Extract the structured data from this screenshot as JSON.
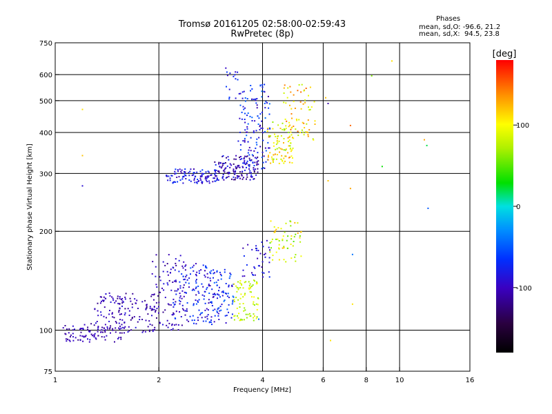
{
  "chart_data": {
    "type": "scatter",
    "title": "Tromsø 20161205 02:58:00-02:59:43",
    "subtitle": "RwPretec (8p)",
    "xlabel": "Frequency [MHz]",
    "ylabel": "Stationary phase Virtual Height [km]",
    "x_scale": "log2",
    "y_scale": "log",
    "xlim": [
      1,
      16
    ],
    "ylim": [
      75,
      750
    ],
    "x_ticks": [
      1,
      2,
      4,
      6,
      8,
      10,
      16
    ],
    "x_tick_labels": [
      "1",
      "2",
      "4",
      "6",
      "8",
      "10",
      "16"
    ],
    "x_grid": [
      2,
      4,
      6,
      8,
      10
    ],
    "y_ticks": [
      75,
      100,
      200,
      300,
      400,
      500,
      600,
      750
    ],
    "y_tick_labels": [
      "75",
      "100",
      "200",
      "300",
      "400",
      "500",
      "600",
      "750"
    ],
    "y_grid": [
      100,
      200,
      300,
      400,
      500,
      600
    ],
    "grid": true,
    "colorbar": {
      "label": "[deg]",
      "range": [
        -180,
        180
      ],
      "ticks": [
        100,
        0,
        -100
      ],
      "tick_labels": [
        "100",
        "0",
        "-100"
      ]
    },
    "stats": {
      "heading": "Phases",
      "line_o": "mean, sd,O: -96.6, 21.2",
      "line_x": "mean, sd,X:  94.5, 23.8"
    },
    "clusters": [
      {
        "f": [
          1.05,
          1.6
        ],
        "h": [
          92,
          105
        ],
        "phase": [
          -120,
          -90
        ],
        "n": 90
      },
      {
        "f": [
          1.3,
          2.0
        ],
        "h": [
          98,
          130
        ],
        "phase": [
          -125,
          -85
        ],
        "n": 150
      },
      {
        "f": [
          1.9,
          2.4
        ],
        "h": [
          100,
          170
        ],
        "phase": [
          -120,
          -80
        ],
        "n": 90
      },
      {
        "f": [
          2.2,
          3.0
        ],
        "h": [
          103,
          160
        ],
        "phase": [
          -110,
          -50
        ],
        "n": 150
      },
      {
        "f": [
          2.8,
          3.3
        ],
        "h": [
          105,
          155
        ],
        "phase": [
          -100,
          -40
        ],
        "n": 70
      },
      {
        "f": [
          3.3,
          3.9
        ],
        "h": [
          107,
          142
        ],
        "phase": [
          60,
          110
        ],
        "n": 80
      },
      {
        "f": [
          3.5,
          4.2
        ],
        "h": [
          145,
          190
        ],
        "phase": [
          -110,
          -70
        ],
        "n": 40
      },
      {
        "f": [
          4.2,
          5.2
        ],
        "h": [
          160,
          215
        ],
        "phase": [
          50,
          130
        ],
        "n": 60
      },
      {
        "f": [
          2.1,
          3.0
        ],
        "h": [
          280,
          310
        ],
        "phase": [
          -110,
          -60
        ],
        "n": 110
      },
      {
        "f": [
          2.9,
          3.9
        ],
        "h": [
          285,
          340
        ],
        "phase": [
          -130,
          -70
        ],
        "n": 140
      },
      {
        "f": [
          3.4,
          4.2
        ],
        "h": [
          310,
          560
        ],
        "phase": [
          -110,
          -40
        ],
        "n": 130
      },
      {
        "f": [
          4.1,
          4.9
        ],
        "h": [
          320,
          430
        ],
        "phase": [
          60,
          140
        ],
        "n": 90
      },
      {
        "f": [
          4.6,
          5.7
        ],
        "h": [
          360,
          560
        ],
        "phase": [
          70,
          150
        ],
        "n": 70
      },
      {
        "f": [
          3.1,
          3.4
        ],
        "h": [
          500,
          640
        ],
        "phase": [
          -100,
          -60
        ],
        "n": 15
      }
    ],
    "outliers": [
      {
        "f": 1.2,
        "h": 470,
        "phase": 110
      },
      {
        "f": 1.2,
        "h": 340,
        "phase": 120
      },
      {
        "f": 1.2,
        "h": 275,
        "phase": -90
      },
      {
        "f": 6.1,
        "h": 510,
        "phase": 120
      },
      {
        "f": 6.2,
        "h": 490,
        "phase": -110
      },
      {
        "f": 6.2,
        "h": 285,
        "phase": 120
      },
      {
        "f": 7.2,
        "h": 420,
        "phase": 150
      },
      {
        "f": 7.2,
        "h": 270,
        "phase": 130
      },
      {
        "f": 8.3,
        "h": 595,
        "phase": 60
      },
      {
        "f": 8.9,
        "h": 315,
        "phase": 30
      },
      {
        "f": 9.5,
        "h": 660,
        "phase": 110
      },
      {
        "f": 11.8,
        "h": 380,
        "phase": 130
      },
      {
        "f": 12.0,
        "h": 365,
        "phase": 20
      },
      {
        "f": 12.1,
        "h": 235,
        "phase": -50
      },
      {
        "f": 6.3,
        "h": 93,
        "phase": 110
      },
      {
        "f": 7.3,
        "h": 170,
        "phase": -40
      },
      {
        "f": 7.3,
        "h": 120,
        "phase": 110
      },
      {
        "f": 3.9,
        "h": 108,
        "phase": -40
      }
    ]
  }
}
